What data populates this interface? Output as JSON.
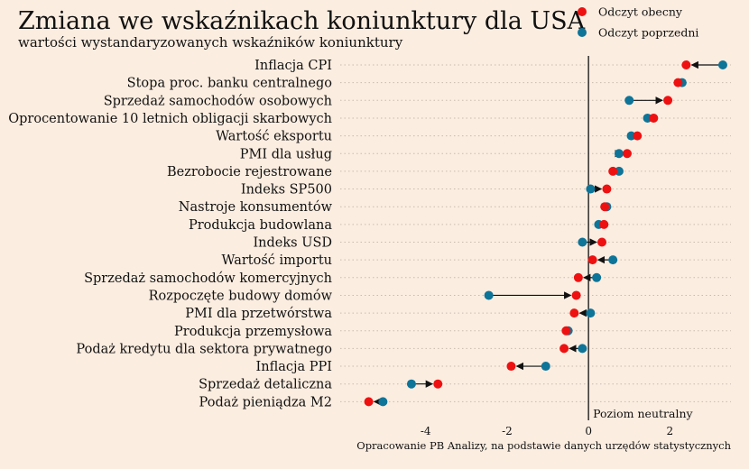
{
  "chart_data": {
    "type": "scatter",
    "title": "Zmiana we wskaźnikach koniunktury dla USA",
    "subtitle": "wartości wystandaryzowanych wskaźników koniunktury",
    "source": "Opracowanie PB Analizy, na podstawie danych urzędów statystycznych",
    "neutral_label": "Poziom neutralny",
    "xlim": [
      -6.1,
      3.5
    ],
    "xticks": [
      -4,
      -2,
      0,
      2
    ],
    "xtick_labels": [
      "-4",
      "-2",
      "0",
      "2"
    ],
    "grid": "horizontal dotted",
    "legend_placement": "top-right",
    "colors": {
      "current": "#ee1111",
      "previous": "#0e7498",
      "background": "#fbede0"
    },
    "series": [
      {
        "name": "Odczyt obecny",
        "key": "current"
      },
      {
        "name": "Odczyt poprzedni",
        "key": "previous"
      }
    ],
    "categories": [
      "Inflacja CPI",
      "Stopa proc. banku centralnego",
      "Sprzedaż samochodów osobowych",
      "Oprocentowanie 10 letnich obligacji skarbowych",
      "Wartość eksportu",
      "PMI dla usług",
      "Bezrobocie rejestrowane",
      "Indeks SP500",
      "Nastroje konsumentów",
      "Produkcja budowlana",
      "Indeks USD",
      "Wartość importu",
      "Sprzedaż samochodów komercyjnych",
      "Rozpoczęte budowy domów",
      "PMI dla przetwórstwa",
      "Produkcja przemysłowa",
      "Podaż kredytu dla sektora prywatnego",
      "Inflacja PPI",
      "Sprzedaż detaliczna",
      "Podaż pieniądza M2"
    ],
    "current": [
      2.4,
      2.2,
      1.95,
      1.6,
      1.2,
      0.95,
      0.6,
      0.45,
      0.4,
      0.38,
      0.33,
      0.1,
      -0.25,
      -0.3,
      -0.35,
      -0.55,
      -0.6,
      -1.9,
      -3.7,
      -5.4
    ],
    "previous": [
      3.3,
      2.3,
      1.0,
      1.45,
      1.05,
      0.75,
      0.75,
      0.05,
      0.45,
      0.25,
      -0.15,
      0.6,
      0.2,
      -2.45,
      0.05,
      -0.5,
      -0.15,
      -1.05,
      -4.35,
      -5.05
    ]
  }
}
